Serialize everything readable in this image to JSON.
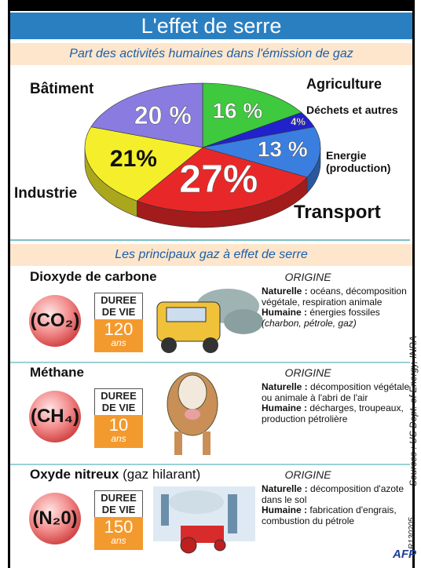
{
  "chart_data": {
    "type": "pie",
    "title": "L'effet de serre",
    "subtitle": "Part des activités humaines dans l'émission de gaz",
    "categories": [
      "Agriculture",
      "Déchets et autres",
      "Energie (production)",
      "Transport",
      "Industrie",
      "Bâtiment"
    ],
    "values": [
      16,
      4,
      13,
      27,
      21,
      20
    ],
    "value_labels": [
      "16 %",
      "4%",
      "13 %",
      "27%",
      "21%",
      "20 %"
    ],
    "colors": [
      "#3ec93e",
      "#2222cc",
      "#3a7ee0",
      "#e82828",
      "#f4ef2a",
      "#8a7be0"
    ]
  },
  "gases_section": {
    "title": "Les principaux gaz à effet de serre",
    "gases": [
      {
        "name": "Dioxyde de carbone",
        "formula": "(CO₂)",
        "duration_label": "DUREE DE VIE",
        "years": "120",
        "unit": "ans",
        "origin_title": "ORIGINE",
        "natural_label": "Naturelle :",
        "natural": "océans, décomposition végétale, respiration animale",
        "human_label": "Humaine :",
        "human": "énergies fossiles",
        "human_note": "(charbon, pétrole, gaz)"
      },
      {
        "name": "Méthane",
        "formula": "(CH₄)",
        "duration_label": "DUREE DE VIE",
        "years": "10",
        "unit": "ans",
        "origin_title": "ORIGINE",
        "natural_label": "Naturelle :",
        "natural": "décomposition végétale ou animale à l'abri de l'air",
        "human_label": "Humaine :",
        "human": "décharges, troupeaux, production pétrolière"
      },
      {
        "name": "Oxyde nitreux",
        "name_note": "(gaz hilarant)",
        "formula": "(N₂0)",
        "duration_label": "DUREE DE VIE",
        "years": "150",
        "unit": "ans",
        "origin_title": "ORIGINE",
        "natural_label": "Naturelle :",
        "natural": "décomposition d'azote dans le sol",
        "human_label": "Humaine :",
        "human": "fabrication d'engrais, combustion du pétrole"
      }
    ]
  },
  "sources": "Sources : US Dept. of Energy, INRA",
  "reference": "R130205",
  "agency": "AFP"
}
